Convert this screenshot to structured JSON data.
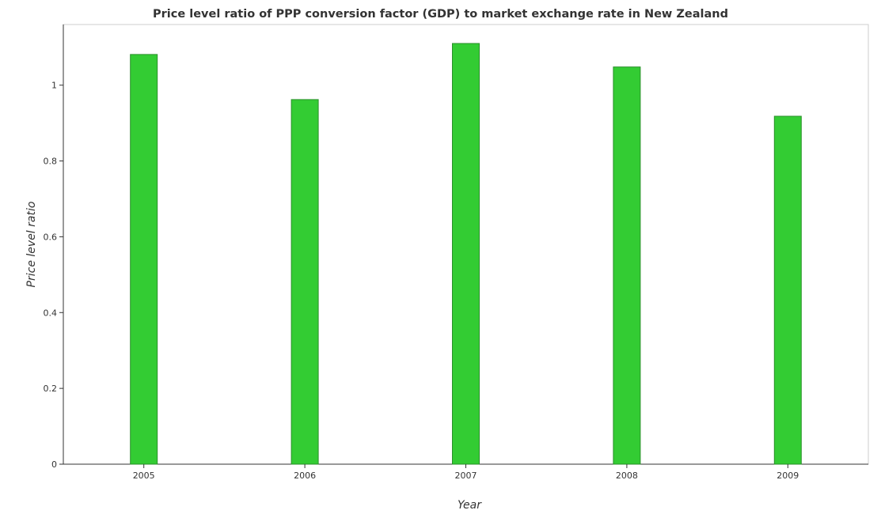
{
  "chart_data": {
    "type": "bar",
    "title": "Price level ratio of PPP conversion factor (GDP) to market exchange rate in New Zealand",
    "xlabel": "Year",
    "ylabel": "Price level ratio",
    "categories": [
      "2005",
      "2006",
      "2007",
      "2008",
      "2009"
    ],
    "values": [
      1.081,
      0.962,
      1.11,
      1.048,
      0.918
    ],
    "ylim": [
      0,
      1.16
    ],
    "yticks": [
      0,
      0.2,
      0.4,
      0.6,
      0.8,
      1
    ],
    "ytick_labels": [
      "0",
      "0.2",
      "0.4",
      "0.6",
      "0.8",
      "1"
    ],
    "bar_color": "#33cc33",
    "bar_stroke": "#2a8f2a",
    "grid": false,
    "legend": "none"
  }
}
